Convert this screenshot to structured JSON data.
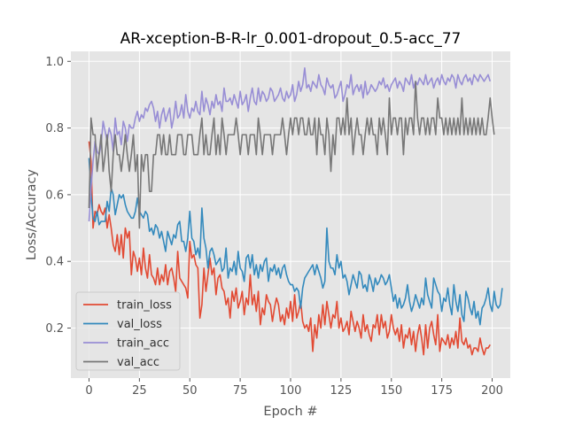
{
  "chart_data": {
    "type": "line",
    "title": "AR-xception-B-R-lr_0.001-dropout_0.5-acc_77",
    "xlabel": "Epoch #",
    "ylabel": "Loss/Accuracy",
    "xlim": [
      -9,
      209
    ],
    "ylim": [
      0.05,
      1.03
    ],
    "xticks": [
      0,
      25,
      50,
      75,
      100,
      125,
      150,
      175,
      200
    ],
    "yticks": [
      0.2,
      0.4,
      0.6,
      0.8,
      1.0
    ],
    "ytick_labels": [
      "0.2",
      "0.4",
      "0.6",
      "0.8",
      "1.0"
    ],
    "grid": true,
    "legend_position": "lower-left",
    "x_note": "one value per epoch, epochs 0 through 199",
    "series": [
      {
        "name": "train_loss",
        "color": "#E24A33",
        "values": [
          0.76,
          0.7,
          0.5,
          0.55,
          0.54,
          0.57,
          0.55,
          0.54,
          0.56,
          0.5,
          0.54,
          0.5,
          0.45,
          0.43,
          0.48,
          0.42,
          0.48,
          0.41,
          0.5,
          0.47,
          0.49,
          0.36,
          0.43,
          0.41,
          0.37,
          0.41,
          0.36,
          0.44,
          0.38,
          0.35,
          0.42,
          0.36,
          0.35,
          0.33,
          0.38,
          0.33,
          0.36,
          0.34,
          0.39,
          0.33,
          0.37,
          0.38,
          0.35,
          0.31,
          0.43,
          0.35,
          0.34,
          0.33,
          0.32,
          0.29,
          0.46,
          0.41,
          0.42,
          0.39,
          0.38,
          0.23,
          0.27,
          0.38,
          0.31,
          0.36,
          0.41,
          0.36,
          0.38,
          0.3,
          0.35,
          0.36,
          0.32,
          0.31,
          0.27,
          0.29,
          0.23,
          0.31,
          0.28,
          0.32,
          0.26,
          0.28,
          0.31,
          0.24,
          0.29,
          0.27,
          0.36,
          0.27,
          0.3,
          0.25,
          0.31,
          0.21,
          0.26,
          0.24,
          0.3,
          0.28,
          0.27,
          0.22,
          0.26,
          0.29,
          0.27,
          0.22,
          0.24,
          0.21,
          0.26,
          0.23,
          0.28,
          0.22,
          0.3,
          0.23,
          0.25,
          0.28,
          0.22,
          0.2,
          0.21,
          0.19,
          0.23,
          0.13,
          0.21,
          0.17,
          0.24,
          0.2,
          0.27,
          0.21,
          0.28,
          0.24,
          0.2,
          0.24,
          0.23,
          0.28,
          0.2,
          0.23,
          0.19,
          0.2,
          0.22,
          0.18,
          0.25,
          0.22,
          0.19,
          0.22,
          0.2,
          0.17,
          0.24,
          0.19,
          0.21,
          0.18,
          0.16,
          0.21,
          0.2,
          0.24,
          0.18,
          0.24,
          0.2,
          0.22,
          0.17,
          0.19,
          0.24,
          0.2,
          0.18,
          0.2,
          0.16,
          0.21,
          0.14,
          0.18,
          0.17,
          0.2,
          0.15,
          0.19,
          0.13,
          0.18,
          0.21,
          0.17,
          0.12,
          0.21,
          0.14,
          0.2,
          0.22,
          0.18,
          0.15,
          0.24,
          0.13,
          0.17,
          0.16,
          0.15,
          0.18,
          0.14,
          0.17,
          0.15,
          0.19,
          0.14,
          0.23,
          0.16,
          0.15,
          0.17,
          0.14,
          0.15,
          0.12,
          0.14,
          0.14,
          0.13,
          0.17,
          0.14,
          0.12,
          0.14,
          0.14,
          0.15
        ]
      },
      {
        "name": "val_loss",
        "color": "#348ABD",
        "values": [
          0.71,
          0.6,
          0.53,
          0.52,
          0.55,
          0.51,
          0.52,
          0.52,
          0.52,
          0.58,
          0.55,
          0.62,
          0.6,
          0.54,
          0.57,
          0.6,
          0.59,
          0.6,
          0.57,
          0.55,
          0.54,
          0.53,
          0.53,
          0.55,
          0.59,
          0.55,
          0.54,
          0.53,
          0.55,
          0.54,
          0.49,
          0.5,
          0.48,
          0.51,
          0.5,
          0.47,
          0.49,
          0.46,
          0.43,
          0.49,
          0.47,
          0.45,
          0.48,
          0.47,
          0.51,
          0.52,
          0.46,
          0.46,
          0.43,
          0.47,
          0.55,
          0.47,
          0.46,
          0.42,
          0.44,
          0.41,
          0.56,
          0.47,
          0.44,
          0.38,
          0.43,
          0.44,
          0.42,
          0.39,
          0.4,
          0.41,
          0.37,
          0.38,
          0.44,
          0.35,
          0.38,
          0.37,
          0.4,
          0.36,
          0.43,
          0.38,
          0.37,
          0.34,
          0.41,
          0.42,
          0.38,
          0.42,
          0.36,
          0.39,
          0.35,
          0.39,
          0.37,
          0.4,
          0.41,
          0.34,
          0.38,
          0.37,
          0.39,
          0.36,
          0.38,
          0.35,
          0.38,
          0.39,
          0.36,
          0.34,
          0.33,
          0.33,
          0.31,
          0.32,
          0.31,
          0.26,
          0.32,
          0.35,
          0.36,
          0.37,
          0.38,
          0.39,
          0.36,
          0.39,
          0.37,
          0.35,
          0.32,
          0.34,
          0.5,
          0.4,
          0.38,
          0.38,
          0.36,
          0.42,
          0.38,
          0.4,
          0.35,
          0.36,
          0.34,
          0.3,
          0.33,
          0.36,
          0.34,
          0.32,
          0.37,
          0.36,
          0.32,
          0.33,
          0.31,
          0.36,
          0.34,
          0.31,
          0.35,
          0.33,
          0.34,
          0.36,
          0.35,
          0.33,
          0.34,
          0.36,
          0.32,
          0.28,
          0.3,
          0.26,
          0.29,
          0.26,
          0.27,
          0.29,
          0.33,
          0.28,
          0.25,
          0.27,
          0.3,
          0.28,
          0.26,
          0.29,
          0.27,
          0.35,
          0.3,
          0.28,
          0.26,
          0.35,
          0.33,
          0.31,
          0.3,
          0.25,
          0.29,
          0.28,
          0.32,
          0.27,
          0.24,
          0.33,
          0.28,
          0.25,
          0.3,
          0.24,
          0.22,
          0.31,
          0.29,
          0.26,
          0.24,
          0.28,
          0.23,
          0.25,
          0.21,
          0.26,
          0.27,
          0.29,
          0.32,
          0.27,
          0.25,
          0.31,
          0.27,
          0.26,
          0.27,
          0.32
        ]
      },
      {
        "name": "train_acc",
        "color": "#988ED5",
        "values": [
          0.52,
          0.62,
          0.7,
          0.76,
          0.73,
          0.72,
          0.75,
          0.82,
          0.79,
          0.76,
          0.8,
          0.78,
          0.73,
          0.83,
          0.78,
          0.79,
          0.75,
          0.82,
          0.8,
          0.76,
          0.81,
          0.8,
          0.8,
          0.83,
          0.85,
          0.82,
          0.84,
          0.83,
          0.86,
          0.85,
          0.87,
          0.88,
          0.86,
          0.82,
          0.85,
          0.8,
          0.84,
          0.86,
          0.82,
          0.84,
          0.86,
          0.8,
          0.83,
          0.88,
          0.83,
          0.84,
          0.87,
          0.83,
          0.9,
          0.85,
          0.83,
          0.86,
          0.85,
          0.88,
          0.85,
          0.84,
          0.91,
          0.85,
          0.89,
          0.87,
          0.84,
          0.88,
          0.86,
          0.9,
          0.87,
          0.88,
          0.85,
          0.92,
          0.88,
          0.88,
          0.89,
          0.87,
          0.9,
          0.88,
          0.86,
          0.91,
          0.87,
          0.88,
          0.9,
          0.85,
          0.89,
          0.92,
          0.88,
          0.87,
          0.92,
          0.88,
          0.91,
          0.9,
          0.88,
          0.89,
          0.92,
          0.91,
          0.88,
          0.89,
          0.9,
          0.92,
          0.89,
          0.88,
          0.91,
          0.89,
          0.9,
          0.93,
          0.88,
          0.9,
          0.94,
          0.91,
          0.93,
          0.98,
          0.92,
          0.93,
          0.91,
          0.94,
          0.93,
          0.92,
          0.96,
          0.93,
          0.92,
          0.9,
          0.95,
          0.93,
          0.92,
          0.93,
          0.89,
          0.9,
          0.92,
          0.94,
          0.88,
          0.9,
          0.93,
          0.92,
          0.96,
          0.9,
          0.92,
          0.93,
          0.91,
          0.93,
          0.89,
          0.94,
          0.9,
          0.91,
          0.93,
          0.92,
          0.91,
          0.92,
          0.94,
          0.93,
          0.95,
          0.92,
          0.93,
          0.91,
          0.93,
          0.94,
          0.95,
          0.92,
          0.94,
          0.93,
          0.91,
          0.95,
          0.94,
          0.93,
          0.96,
          0.92,
          0.94,
          0.93,
          0.95,
          0.94,
          0.93,
          0.96,
          0.93,
          0.94,
          0.95,
          0.92,
          0.94,
          0.95,
          0.93,
          0.96,
          0.94,
          0.93,
          0.95,
          0.94,
          0.96,
          0.95,
          0.92,
          0.96,
          0.94,
          0.93,
          0.95,
          0.96,
          0.94,
          0.95,
          0.93,
          0.96,
          0.95,
          0.94,
          0.96,
          0.95,
          0.94,
          0.95,
          0.96,
          0.94
        ]
      },
      {
        "name": "val_acc",
        "color": "#777777",
        "values": [
          0.56,
          0.83,
          0.78,
          0.78,
          0.67,
          0.72,
          0.78,
          0.67,
          0.72,
          0.78,
          0.67,
          0.61,
          0.72,
          0.78,
          0.72,
          0.72,
          0.67,
          0.72,
          0.78,
          0.72,
          0.67,
          0.72,
          0.78,
          0.67,
          0.72,
          0.5,
          0.72,
          0.67,
          0.72,
          0.72,
          0.61,
          0.61,
          0.72,
          0.72,
          0.78,
          0.78,
          0.72,
          0.78,
          0.72,
          0.72,
          0.78,
          0.72,
          0.72,
          0.72,
          0.78,
          0.78,
          0.78,
          0.72,
          0.72,
          0.78,
          0.78,
          0.78,
          0.72,
          0.72,
          0.72,
          0.78,
          0.83,
          0.72,
          0.78,
          0.72,
          0.72,
          0.78,
          0.83,
          0.72,
          0.78,
          0.72,
          0.83,
          0.78,
          0.72,
          0.78,
          0.78,
          0.78,
          0.78,
          0.83,
          0.78,
          0.72,
          0.78,
          0.78,
          0.78,
          0.72,
          0.78,
          0.78,
          0.78,
          0.72,
          0.83,
          0.78,
          0.72,
          0.78,
          0.78,
          0.78,
          0.78,
          0.72,
          0.78,
          0.78,
          0.78,
          0.78,
          0.83,
          0.78,
          0.72,
          0.78,
          0.83,
          0.78,
          0.83,
          0.83,
          0.78,
          0.83,
          0.83,
          0.78,
          0.78,
          0.83,
          0.78,
          0.78,
          0.83,
          0.72,
          0.83,
          0.78,
          0.78,
          0.72,
          0.83,
          0.78,
          0.67,
          0.78,
          0.72,
          0.83,
          0.83,
          0.78,
          0.83,
          0.78,
          0.89,
          0.78,
          0.83,
          0.72,
          0.78,
          0.83,
          0.78,
          0.78,
          0.72,
          0.78,
          0.83,
          0.78,
          0.83,
          0.78,
          0.78,
          0.72,
          0.83,
          0.78,
          0.83,
          0.78,
          0.72,
          0.89,
          0.78,
          0.83,
          0.83,
          0.78,
          0.83,
          0.83,
          0.72,
          0.83,
          0.78,
          0.83,
          0.83,
          0.78,
          0.94,
          0.83,
          0.78,
          0.83,
          0.83,
          0.78,
          0.83,
          0.78,
          0.83,
          0.83,
          0.78,
          0.89,
          0.83,
          0.83,
          0.78,
          0.83,
          0.78,
          0.83,
          0.78,
          0.83,
          0.78,
          0.83,
          0.78,
          0.89,
          0.78,
          0.83,
          0.78,
          0.83,
          0.78,
          0.83,
          0.78,
          0.83,
          0.78,
          0.83,
          0.78,
          0.78,
          0.83,
          0.89,
          0.83,
          0.78
        ]
      }
    ]
  }
}
